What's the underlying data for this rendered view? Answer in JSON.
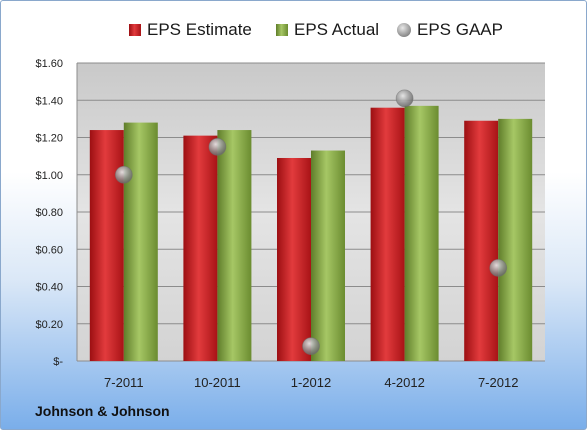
{
  "company_label": "Johnson & Johnson",
  "legend": [
    {
      "label": "EPS Estimate",
      "icon": "red-bar-swatch"
    },
    {
      "label": "EPS Actual",
      "icon": "green-bar-swatch"
    },
    {
      "label": "EPS GAAP",
      "icon": "gray-sphere-marker"
    }
  ],
  "colors": {
    "estimate": "#c4191c",
    "actual": "#8aab4a",
    "gaap": "#8f8f8f",
    "plot_bg": "#d9d9d9"
  },
  "chart_data": {
    "type": "bar",
    "categories": [
      "7-2011",
      "10-2011",
      "1-2012",
      "4-2012",
      "7-2012"
    ],
    "series": [
      {
        "name": "EPS Estimate",
        "type": "bar",
        "values": [
          1.24,
          1.21,
          1.09,
          1.36,
          1.29
        ]
      },
      {
        "name": "EPS Actual",
        "type": "bar",
        "values": [
          1.28,
          1.24,
          1.13,
          1.37,
          1.3
        ]
      },
      {
        "name": "EPS GAAP",
        "type": "scatter",
        "values": [
          1.0,
          1.15,
          0.08,
          1.41,
          0.5
        ]
      }
    ],
    "ylim": [
      0,
      1.6
    ],
    "yticks": [
      0,
      0.2,
      0.4,
      0.6,
      0.8,
      1.0,
      1.2,
      1.4,
      1.6
    ],
    "ytick_labels": [
      "$-",
      "$0.20",
      "$0.40",
      "$0.60",
      "$0.80",
      "$1.00",
      "$1.20",
      "$1.40",
      "$1.60"
    ],
    "grid": true,
    "legend_position": "top"
  }
}
